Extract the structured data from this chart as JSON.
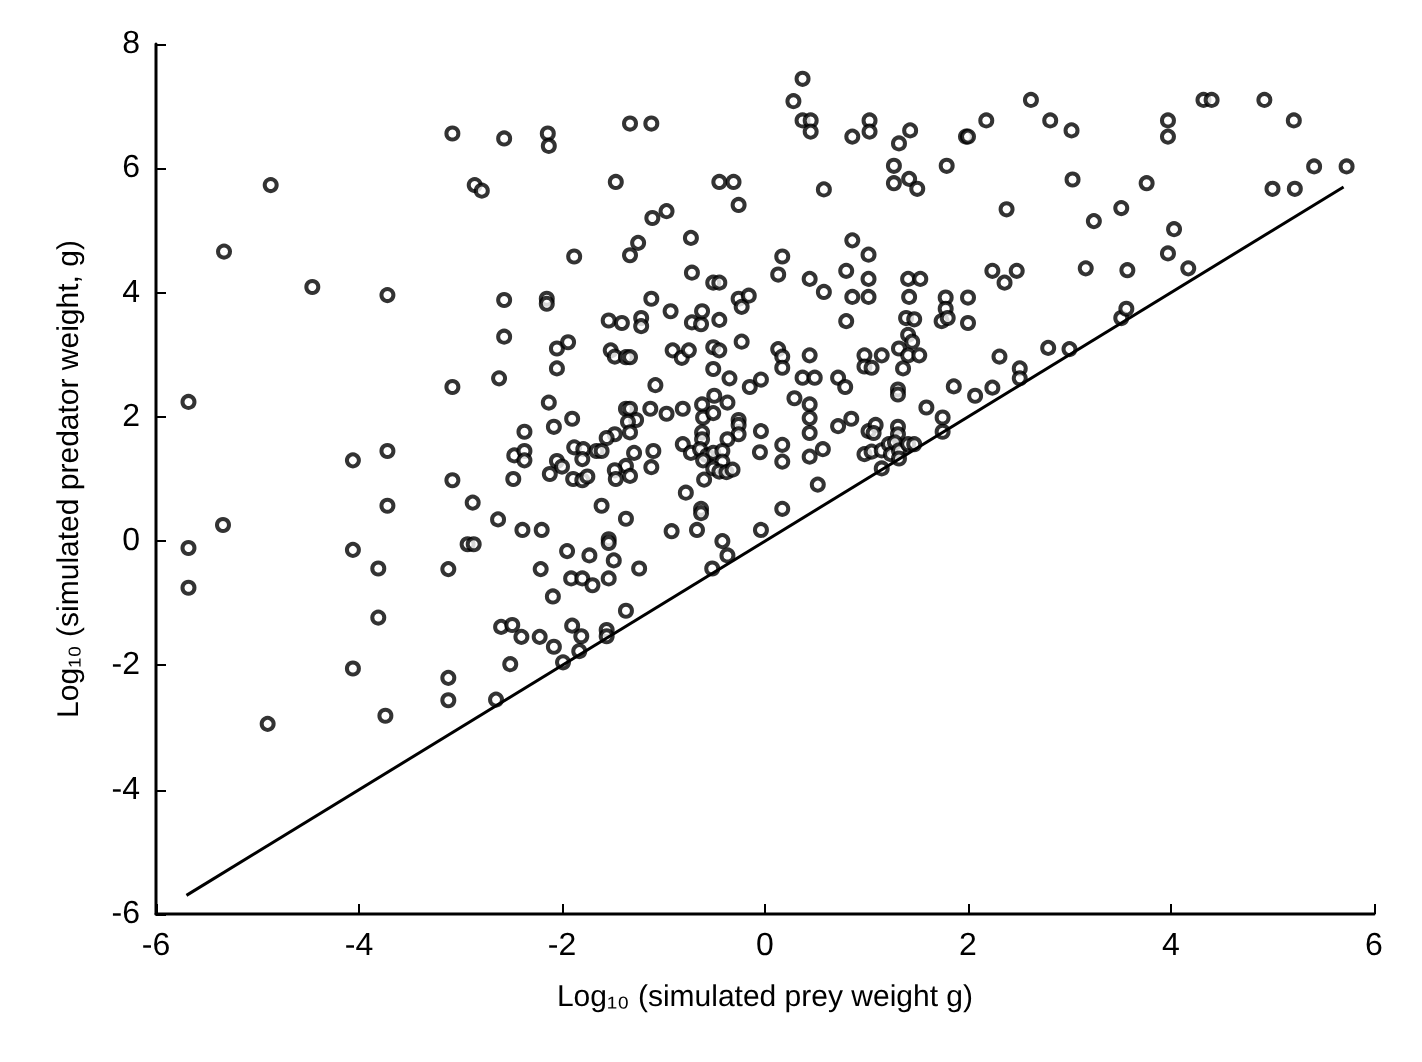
{
  "chart_data": {
    "type": "scatter",
    "xlabel": "Log₁₀ (simulated prey weight g)",
    "ylabel": "Log₁₀ (simulated predator weight, g)",
    "xlim": [
      -6,
      6
    ],
    "xticks": [
      -6,
      -4,
      -2,
      0,
      2,
      4,
      6
    ],
    "ylim": [
      -6,
      8
    ],
    "yticks": [
      -6,
      -4,
      -2,
      0,
      2,
      4,
      6,
      8
    ],
    "grid": false,
    "marker": "circle",
    "series": [
      {
        "color": "#000000",
        "x": [
          -5.68,
          -5.33,
          -4.87,
          -4.46,
          -4.06,
          -3.72,
          -3.72,
          -3.72,
          -3.08,
          -3.08,
          -3.08,
          -2.88,
          -2.86,
          -2.79,
          -2.57,
          -2.57,
          -2.57,
          -2.62,
          -2.48,
          -2.37,
          -2.47,
          -2.37,
          -2.37,
          -2.14,
          -2.13,
          -2.15,
          -2.15,
          -2.05,
          -1.94,
          -2.05,
          -2.13,
          -2.08,
          -1.9,
          -1.88,
          -2.12,
          -2.05,
          -2.0,
          -1.89,
          -1.8,
          -1.75,
          -1.88,
          -1.79,
          -1.8,
          -1.61,
          -1.54,
          -1.41,
          -1.52,
          -1.48,
          -1.37,
          -1.33,
          -1.33,
          -1.12,
          -1.47,
          -1.33,
          -1.25,
          -1.11,
          -0.97,
          -0.73,
          -1.12,
          -1.22,
          -1.22,
          -0.93,
          -0.91,
          -0.82,
          -0.75,
          -0.72,
          -0.72,
          -0.63,
          -0.62,
          -0.51,
          -0.45,
          -0.45,
          -0.51,
          -0.45,
          -0.26,
          -0.45,
          -0.31,
          -0.26,
          -0.16,
          -0.23,
          -0.23,
          -0.35,
          -0.15,
          -0.04,
          -1.08,
          -0.51,
          -1.37,
          -1.33,
          -1.27,
          -1.13,
          -0.97,
          -0.81,
          -0.62,
          -0.5,
          -0.61,
          -0.51,
          -0.37,
          -0.26,
          -0.26,
          -0.26,
          -0.04,
          -0.37,
          -0.62,
          -0.62,
          -1.35,
          -1.33,
          -1.48,
          -1.56,
          -1.66,
          -1.61,
          -1.29,
          -1.37,
          -1.48,
          -1.33,
          -1.47,
          -1.12,
          -1.1,
          -0.81,
          -0.73,
          -0.64,
          -0.57,
          -0.51,
          -0.42,
          -0.61,
          -0.42,
          -0.51,
          -0.45,
          -0.38,
          -0.32,
          -0.6,
          -0.05,
          -0.78,
          -0.63,
          0.37,
          0.28,
          0.37,
          0.45,
          0.45,
          1.03,
          1.03,
          0.86,
          1.32,
          1.43,
          1.27,
          1.27,
          1.42,
          1.5,
          0.58,
          1.79,
          1.98,
          2.0,
          2.18,
          2.62,
          2.81,
          3.02,
          3.03,
          2.38,
          3.24,
          3.51,
          3.76,
          3.97,
          3.97,
          4.32,
          4.4,
          4.92,
          5.21,
          5.41,
          5.73,
          5.0,
          5.22,
          4.03,
          3.97,
          4.17,
          3.16,
          3.57,
          2.24,
          2.36,
          2.48,
          3.51,
          3.56,
          2.79,
          3.0,
          2.31,
          2.51,
          2.51,
          2.24,
          2.07,
          1.86,
          1.59,
          1.75,
          1.75,
          1.78,
          2.0,
          1.78,
          1.74,
          1.8,
          2.0,
          1.41,
          1.53,
          1.42,
          1.39,
          1.47,
          1.41,
          1.45,
          1.32,
          1.41,
          1.52,
          1.36,
          0.86,
          1.02,
          1.02,
          1.02,
          0.86,
          0.8,
          0.8,
          0.58,
          0.44,
          0.17,
          0.13,
          0.13,
          0.17,
          0.17,
          0.44,
          0.37,
          0.49,
          0.72,
          0.79,
          0.98,
          0.98,
          1.05,
          1.15,
          0.29,
          0.44,
          0.44,
          0.44,
          0.44,
          0.57,
          0.52,
          0.72,
          0.85,
          0.17,
          0.17,
          0.17,
          1.02,
          1.09,
          1.07,
          0.98,
          1.05,
          1.15,
          1.22,
          1.24,
          1.31,
          1.31,
          1.28,
          1.32,
          1.41,
          1.47,
          1.32,
          1.15,
          1.31,
          1.31,
          -5.68,
          -5.68,
          -5.34,
          -4.9,
          -4.06,
          -4.06,
          -3.81,
          -3.81,
          -3.74,
          -3.12,
          -3.12,
          -3.12,
          -2.93,
          -2.87,
          -2.63,
          -2.65,
          -2.6,
          -2.49,
          -2.39,
          -2.2,
          -2.21,
          -2.4,
          -2.22,
          -2.51,
          -2.09,
          -2.08,
          -1.99,
          -1.9,
          -1.95,
          -1.91,
          -1.8,
          -1.81,
          -1.83,
          -1.73,
          -1.7,
          -1.54,
          -1.54,
          -1.49,
          -1.54,
          -1.56,
          -1.56,
          -1.37,
          -1.24,
          -1.37,
          -0.92,
          -0.63,
          -0.67,
          -0.52,
          -0.42,
          -0.37,
          -0.04
        ],
        "values": [
          2.24,
          4.66,
          5.73,
          4.09,
          1.3,
          3.96,
          1.45,
          0.57,
          6.56,
          2.48,
          0.98,
          0.62,
          5.73,
          5.64,
          6.48,
          3.88,
          3.29,
          2.62,
          1.0,
          1.76,
          1.38,
          1.45,
          1.3,
          6.56,
          6.36,
          3.9,
          3.82,
          3.1,
          3.2,
          2.78,
          2.23,
          1.84,
          1.97,
          4.58,
          1.08,
          1.29,
          1.2,
          1.0,
          0.98,
          1.04,
          1.51,
          1.48,
          1.32,
          0.57,
          3.55,
          3.51,
          3.07,
          2.97,
          2.96,
          2.96,
          6.72,
          6.72,
          5.78,
          4.6,
          4.8,
          5.2,
          5.31,
          4.88,
          3.9,
          3.59,
          3.46,
          3.7,
          3.07,
          2.95,
          3.07,
          4.32,
          3.52,
          3.49,
          3.7,
          4.16,
          4.16,
          3.56,
          3.12,
          3.07,
          5.41,
          5.78,
          5.78,
          3.9,
          3.95,
          3.77,
          3.21,
          2.62,
          2.48,
          2.6,
          2.51,
          2.77,
          2.13,
          2.13,
          1.95,
          2.13,
          2.05,
          2.13,
          2.2,
          2.34,
          1.99,
          2.06,
          2.23,
          1.95,
          1.87,
          1.72,
          1.77,
          1.64,
          1.75,
          1.64,
          1.92,
          1.75,
          1.72,
          1.66,
          1.45,
          1.45,
          1.42,
          1.21,
          1.14,
          1.05,
          1.0,
          1.19,
          1.45,
          1.56,
          1.42,
          1.48,
          1.38,
          1.42,
          1.45,
          1.3,
          1.28,
          1.17,
          1.12,
          1.11,
          1.15,
          0.99,
          1.43,
          0.78,
          0.52,
          7.44,
          7.08,
          6.77,
          6.77,
          6.59,
          6.77,
          6.59,
          6.51,
          6.4,
          6.61,
          6.04,
          5.76,
          5.83,
          5.67,
          5.66,
          6.04,
          6.51,
          6.51,
          6.77,
          7.1,
          6.77,
          6.61,
          5.82,
          5.34,
          5.15,
          5.36,
          5.76,
          6.77,
          6.51,
          7.1,
          7.1,
          7.1,
          6.77,
          6.03,
          6.03,
          5.67,
          5.67,
          5.02,
          4.63,
          4.39,
          4.39,
          4.36,
          4.35,
          4.16,
          4.35,
          3.59,
          3.74,
          3.11,
          3.09,
          2.97,
          2.78,
          2.62,
          2.47,
          2.34,
          2.49,
          2.15,
          1.99,
          1.76,
          3.92,
          3.92,
          3.74,
          3.54,
          3.59,
          3.51,
          4.22,
          4.22,
          3.93,
          3.59,
          3.57,
          3.32,
          3.21,
          3.1,
          2.99,
          2.99,
          2.78,
          4.84,
          4.61,
          4.22,
          3.93,
          3.93,
          4.35,
          3.54,
          4.01,
          4.22,
          4.58,
          4.29,
          3.09,
          2.97,
          2.79,
          2.99,
          2.63,
          2.63,
          2.63,
          2.48,
          2.99,
          2.81,
          2.79,
          2.99,
          2.3,
          2.2,
          1.98,
          1.74,
          1.36,
          1.48,
          0.91,
          1.85,
          1.97,
          1.55,
          1.28,
          0.52,
          1.77,
          1.87,
          1.74,
          1.4,
          1.44,
          1.46,
          1.56,
          1.4,
          1.84,
          1.72,
          1.59,
          1.46,
          1.56,
          1.56,
          1.33,
          1.17,
          2.44,
          2.36,
          -0.11,
          -0.75,
          0.26,
          -2.94,
          -0.14,
          -2.05,
          -0.44,
          -1.23,
          -2.81,
          -0.45,
          -2.2,
          -2.56,
          -0.05,
          -0.05,
          0.35,
          -2.55,
          -1.38,
          -1.35,
          0.18,
          0.18,
          -0.45,
          -1.54,
          -1.54,
          -1.98,
          -0.89,
          -1.7,
          -1.95,
          -1.36,
          -0.16,
          -0.6,
          -0.6,
          -1.53,
          -1.77,
          -0.23,
          -0.71,
          0.03,
          -0.03,
          -0.31,
          -0.6,
          -1.43,
          -1.53,
          0.36,
          -0.44,
          -1.12,
          0.16,
          0.45,
          0.18,
          -0.44,
          0.0,
          -0.23,
          0.18
        ]
      },
      {
        "type": "line",
        "color": "#000000",
        "marker": "none",
        "line_style": "solid",
        "x": [
          -5.7,
          5.7
        ],
        "values": [
          -5.7,
          5.7
        ]
      }
    ]
  }
}
